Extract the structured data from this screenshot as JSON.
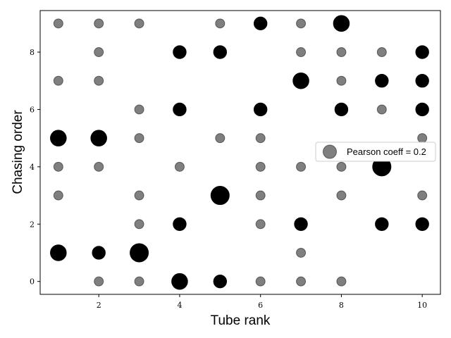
{
  "chart_data": {
    "type": "scatter",
    "xlabel": "Tube rank",
    "ylabel": "Chasing order",
    "xlim": [
      0.55,
      10.45
    ],
    "ylim": [
      -0.45,
      9.45
    ],
    "xticks": [
      2,
      4,
      6,
      8,
      10
    ],
    "yticks": [
      0,
      2,
      4,
      6,
      8
    ],
    "grid": false,
    "legend": {
      "placement": "center-right",
      "label": "Pearson coeff = 0.2"
    },
    "marker_color": "#000000",
    "points": [
      {
        "x": 1,
        "y": 9,
        "count": 1
      },
      {
        "x": 2,
        "y": 9,
        "count": 1
      },
      {
        "x": 3,
        "y": 9,
        "count": 1
      },
      {
        "x": 5,
        "y": 9,
        "count": 1
      },
      {
        "x": 6,
        "y": 9,
        "count": 2
      },
      {
        "x": 7,
        "y": 9,
        "count": 1
      },
      {
        "x": 8,
        "y": 9,
        "count": 3
      },
      {
        "x": 2,
        "y": 8,
        "count": 1
      },
      {
        "x": 4,
        "y": 8,
        "count": 2
      },
      {
        "x": 5,
        "y": 8,
        "count": 2
      },
      {
        "x": 7,
        "y": 8,
        "count": 1
      },
      {
        "x": 8,
        "y": 8,
        "count": 1
      },
      {
        "x": 9,
        "y": 8,
        "count": 1
      },
      {
        "x": 10,
        "y": 8,
        "count": 2
      },
      {
        "x": 1,
        "y": 7,
        "count": 1
      },
      {
        "x": 2,
        "y": 7,
        "count": 1
      },
      {
        "x": 7,
        "y": 7,
        "count": 3
      },
      {
        "x": 8,
        "y": 7,
        "count": 1
      },
      {
        "x": 9,
        "y": 7,
        "count": 2
      },
      {
        "x": 10,
        "y": 7,
        "count": 2
      },
      {
        "x": 3,
        "y": 6,
        "count": 1
      },
      {
        "x": 4,
        "y": 6,
        "count": 2
      },
      {
        "x": 6,
        "y": 6,
        "count": 2
      },
      {
        "x": 8,
        "y": 6,
        "count": 2
      },
      {
        "x": 9,
        "y": 6,
        "count": 1
      },
      {
        "x": 10,
        "y": 6,
        "count": 2
      },
      {
        "x": 1,
        "y": 5,
        "count": 3
      },
      {
        "x": 2,
        "y": 5,
        "count": 3
      },
      {
        "x": 3,
        "y": 5,
        "count": 1
      },
      {
        "x": 5,
        "y": 5,
        "count": 1
      },
      {
        "x": 6,
        "y": 5,
        "count": 1
      },
      {
        "x": 10,
        "y": 5,
        "count": 1
      },
      {
        "x": 1,
        "y": 4,
        "count": 1
      },
      {
        "x": 2,
        "y": 4,
        "count": 1
      },
      {
        "x": 4,
        "y": 4,
        "count": 1
      },
      {
        "x": 6,
        "y": 4,
        "count": 1
      },
      {
        "x": 7,
        "y": 4,
        "count": 1
      },
      {
        "x": 8,
        "y": 4,
        "count": 1
      },
      {
        "x": 9,
        "y": 4,
        "count": 4
      },
      {
        "x": 1,
        "y": 3,
        "count": 1
      },
      {
        "x": 3,
        "y": 3,
        "count": 1
      },
      {
        "x": 5,
        "y": 3,
        "count": 4
      },
      {
        "x": 6,
        "y": 3,
        "count": 1
      },
      {
        "x": 8,
        "y": 3,
        "count": 1
      },
      {
        "x": 10,
        "y": 3,
        "count": 1
      },
      {
        "x": 3,
        "y": 2,
        "count": 1
      },
      {
        "x": 4,
        "y": 2,
        "count": 2
      },
      {
        "x": 6,
        "y": 2,
        "count": 1
      },
      {
        "x": 7,
        "y": 2,
        "count": 2
      },
      {
        "x": 9,
        "y": 2,
        "count": 2
      },
      {
        "x": 10,
        "y": 2,
        "count": 2
      },
      {
        "x": 1,
        "y": 1,
        "count": 3
      },
      {
        "x": 2,
        "y": 1,
        "count": 2
      },
      {
        "x": 3,
        "y": 1,
        "count": 4
      },
      {
        "x": 7,
        "y": 1,
        "count": 1
      },
      {
        "x": 2,
        "y": 0,
        "count": 1
      },
      {
        "x": 3,
        "y": 0,
        "count": 1
      },
      {
        "x": 4,
        "y": 0,
        "count": 3
      },
      {
        "x": 5,
        "y": 0,
        "count": 2
      },
      {
        "x": 6,
        "y": 0,
        "count": 1
      },
      {
        "x": 7,
        "y": 0,
        "count": 1
      },
      {
        "x": 8,
        "y": 0,
        "count": 1
      }
    ]
  }
}
